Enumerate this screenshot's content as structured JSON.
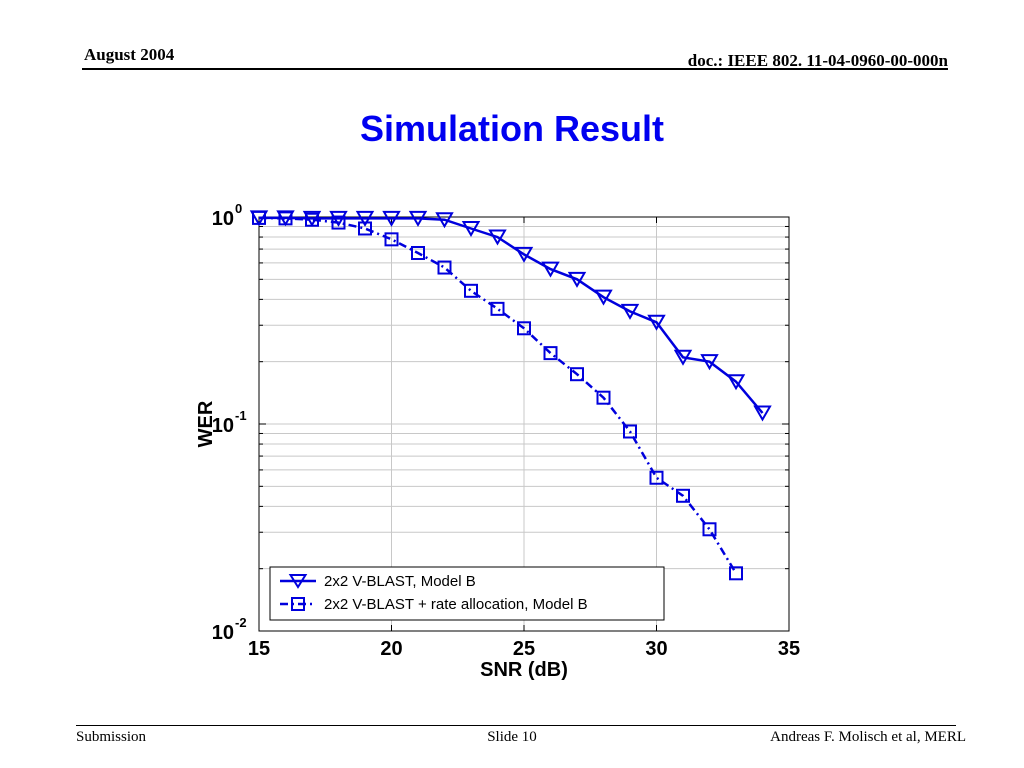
{
  "header": {
    "date": "August 2004",
    "doc_id": "doc.: IEEE 802. 11-04-0960-00-000n"
  },
  "slide_title": "Simulation Result",
  "footer": {
    "left": "Submission",
    "center": "Slide 10",
    "right": "Andreas F. Molisch et al, MERL"
  },
  "chart_data": {
    "type": "line",
    "title": "",
    "xlabel": "SNR (dB)",
    "ylabel": "WER",
    "xlim": [
      15,
      35
    ],
    "ylim": [
      0.01,
      1
    ],
    "yscale": "log",
    "grid": true,
    "legend_position": "bottom-left",
    "x_ticks": [
      "15",
      "20",
      "25",
      "30",
      "35"
    ],
    "y_ticks": [
      {
        "value": 1,
        "base": "10",
        "exp": "0"
      },
      {
        "value": 0.1,
        "base": "10",
        "exp": "-1"
      },
      {
        "value": 0.01,
        "base": "10",
        "exp": "-2"
      }
    ],
    "series": [
      {
        "name": "2x2 V-BLAST, Model B",
        "marker": "triangle-down",
        "line_style": "solid",
        "color": "#0000dd",
        "x": [
          15,
          16,
          17,
          18,
          19,
          20,
          21,
          22,
          23,
          24,
          25,
          26,
          27,
          28,
          29,
          30,
          31,
          32,
          33,
          34
        ],
        "values": [
          0.99,
          0.99,
          0.985,
          0.985,
          0.985,
          0.985,
          0.985,
          0.97,
          0.88,
          0.8,
          0.66,
          0.56,
          0.5,
          0.41,
          0.35,
          0.31,
          0.21,
          0.2,
          0.16,
          0.113
        ]
      },
      {
        "name": "2x2 V-BLAST + rate allocation, Model B",
        "marker": "square",
        "line_style": "dash-dot",
        "color": "#0000dd",
        "x": [
          15,
          16,
          17,
          18,
          19,
          20,
          21,
          22,
          23,
          24,
          25,
          26,
          27,
          28,
          29,
          30,
          31,
          32,
          33
        ],
        "values": [
          0.99,
          0.985,
          0.97,
          0.94,
          0.88,
          0.78,
          0.67,
          0.57,
          0.44,
          0.36,
          0.29,
          0.22,
          0.174,
          0.134,
          0.092,
          0.055,
          0.045,
          0.031,
          0.019
        ]
      }
    ]
  }
}
